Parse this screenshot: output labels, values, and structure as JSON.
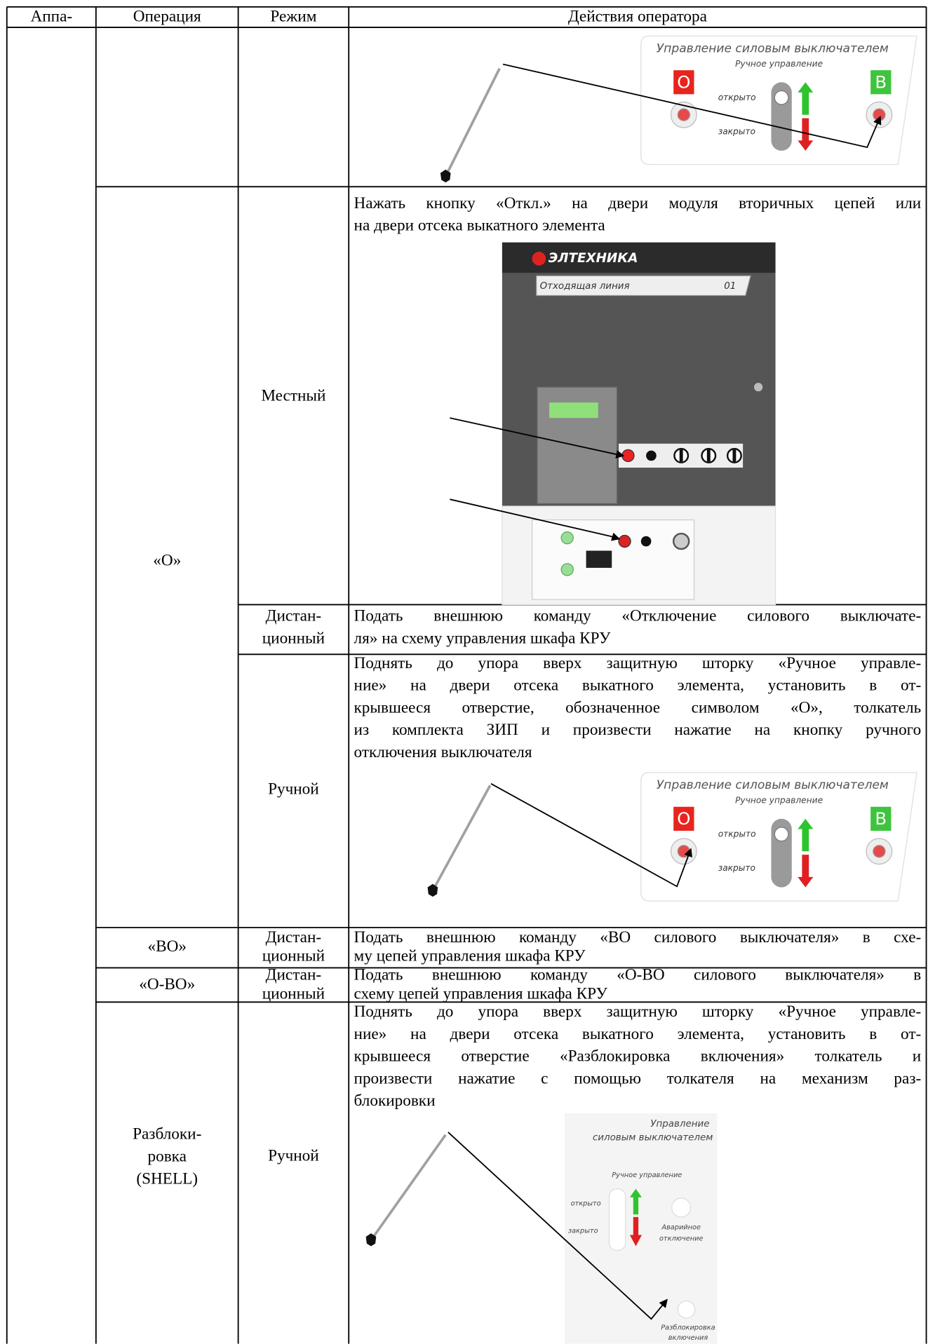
{
  "table": {
    "header": [
      "Аппа-",
      "Операция",
      "Режим",
      "Действия оператора"
    ],
    "rows": [
      {
        "figure": {
          "title": "Управление силовым выключателем",
          "subtitle": "Ручное управление",
          "off_button": "О",
          "on_button": "В",
          "open_label": "открыто",
          "close_label": "закрыто"
        }
      },
      {
        "operation": [
          "«О»"
        ],
        "mode": [
          "Местный"
        ],
        "action": [
          "Нажать кнопку «Откл.» на двери модуля вторичных цепей или",
          "на двери отсека выкатного элемента"
        ],
        "figure": {
          "brand": "ЭЛТЕХНИКА",
          "line_label": "Отходящая линия",
          "number": "01"
        }
      },
      {
        "mode": [
          "Дистан-",
          "ционный"
        ],
        "action": [
          "Подать внешнюю команду «Отключение силового выключате-",
          "ля» на схему управления шкафа КРУ"
        ]
      },
      {
        "mode": [
          "Ручной"
        ],
        "action": [
          "Поднять до упора вверх защитную шторку «Ручное управле-",
          "ние» на двери отсека выкатного элемента, установить в от-",
          "крывшееся отверстие, обозначенное символом «О», толкатель",
          "из комплекта ЗИП и произвести нажатие на кнопку ручного",
          "отключения выключателя"
        ],
        "figure": {
          "title": "Управление силовым выключателем",
          "subtitle": "Ручное управление",
          "off_button": "О",
          "on_button": "В",
          "open_label": "открыто",
          "close_label": "закрыто"
        }
      },
      {
        "operation": [
          "«ВО»"
        ],
        "mode": [
          "Дистан-",
          "ционный"
        ],
        "action": [
          "Подать внешнюю команду «ВО силового выключателя» в схе-",
          "му цепей управления шкафа КРУ"
        ]
      },
      {
        "operation": [
          "«О-ВО»"
        ],
        "mode": [
          "Дистан-",
          "ционный"
        ],
        "action": [
          "Подать внешнюю команду «О-ВО силового выключателя» в",
          "схему цепей управления шкафа КРУ"
        ]
      },
      {
        "operation": [
          "Разблоки-",
          "ровка",
          "(SHELL)"
        ],
        "mode": [
          "Ручной"
        ],
        "action": [
          "Поднять до упора вверх защитную шторку «Ручное управле-",
          "ние» на двери отсека выкатного элемента, установить в от-",
          "крывшееся отверстие  «Разблокировка включения» толкатель и",
          "произвести нажатие с помощью толкателя на механизм раз-",
          "блокировки"
        ],
        "figure": {
          "title_lines": [
            "Управление",
            "силовым выключателем"
          ],
          "subtitle": "Ручное управление",
          "open_label": "открыто",
          "close_label": "закрыто",
          "emergency_lines": [
            "Аварийное",
            "отключение"
          ],
          "unlock_lines": [
            "Разблокировка",
            "включения"
          ]
        }
      }
    ]
  }
}
